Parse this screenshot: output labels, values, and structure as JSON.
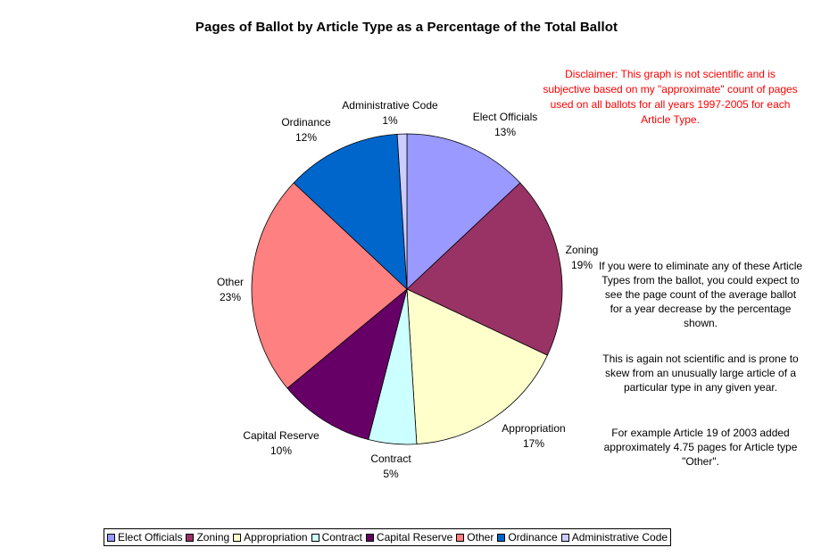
{
  "colors": {
    "outline": "#000000",
    "disclaimer_text": "#ff0000"
  },
  "disclaimer": "Disclaimer: This graph is not scientific and is subjective based on my \"approximate\" count of pages used on all ballots for all years 1997-2005 for each Article Type.",
  "notes": {
    "note1": "If you were to eliminate any of these Article Types from the ballot, you could expect to see the page count of the average ballot for a year decrease by the percentage shown.",
    "note2": "This is again not scientific and is prone to skew from an unusually large article of a particular type in any given year.",
    "note3": "For example Article 19 of 2003 added approximately 4.75 pages for Article type \"Other\"."
  },
  "chart_data": {
    "type": "pie",
    "title": "Pages of Ballot by Article Type as a Percentage of the Total Ballot",
    "legend_position": "bottom",
    "slices": [
      {
        "name": "Elect Officials",
        "value": 13,
        "label": "13%",
        "color": "#9999ff"
      },
      {
        "name": "Zoning",
        "value": 19,
        "label": "19%",
        "color": "#993366"
      },
      {
        "name": "Appropriation",
        "value": 17,
        "label": "17%",
        "color": "#ffffcc"
      },
      {
        "name": "Contract",
        "value": 5,
        "label": "5%",
        "color": "#ccffff"
      },
      {
        "name": "Capital Reserve",
        "value": 10,
        "label": "10%",
        "color": "#660066"
      },
      {
        "name": "Other",
        "value": 23,
        "label": "23%",
        "color": "#ff8080"
      },
      {
        "name": "Ordinance",
        "value": 12,
        "label": "12%",
        "color": "#0066cc"
      },
      {
        "name": "Administrative Code",
        "value": 1,
        "label": "1%",
        "color": "#ccccff"
      }
    ]
  }
}
